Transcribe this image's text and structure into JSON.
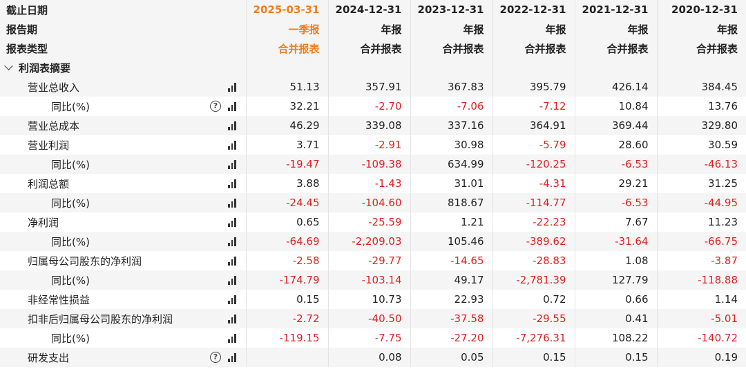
{
  "header_rows": [
    {
      "label": "截止日期",
      "values": [
        "2025-03-31",
        "2024-12-31",
        "2023-12-31",
        "2022-12-31",
        "2021-12-31",
        "2020-12-31"
      ]
    },
    {
      "label": "报告期",
      "values": [
        "一季报",
        "年报",
        "年报",
        "年报",
        "年报",
        "年报"
      ]
    },
    {
      "label": "报表类型",
      "values": [
        "合并报表",
        "合并报表",
        "合并报表",
        "合并报表",
        "合并报表",
        "合并报表"
      ]
    }
  ],
  "highlight_color": "#f07d1e",
  "negative_color": "#e02020",
  "section": {
    "label": "利润表摘要"
  },
  "icons": {
    "chart": "bar-chart-icon",
    "help": "help-circle-icon",
    "collapse": "chevron-down-icon"
  },
  "rows": [
    {
      "label": "营业总收入",
      "level": 1,
      "help": false,
      "values": [
        "51.13",
        "357.91",
        "367.83",
        "395.79",
        "426.14",
        "384.45"
      ]
    },
    {
      "label": "同比(%)",
      "level": 2,
      "help": true,
      "values": [
        "32.21",
        "-2.70",
        "-7.06",
        "-7.12",
        "10.84",
        "13.76"
      ]
    },
    {
      "label": "营业总成本",
      "level": 1,
      "help": false,
      "values": [
        "46.29",
        "339.08",
        "337.16",
        "364.91",
        "369.44",
        "329.80"
      ]
    },
    {
      "label": "营业利润",
      "level": 1,
      "help": false,
      "values": [
        "3.71",
        "-2.91",
        "30.98",
        "-5.79",
        "28.60",
        "30.59"
      ]
    },
    {
      "label": "同比(%)",
      "level": 2,
      "help": false,
      "values": [
        "-19.47",
        "-109.38",
        "634.99",
        "-120.25",
        "-6.53",
        "-46.13"
      ]
    },
    {
      "label": "利润总额",
      "level": 1,
      "help": false,
      "values": [
        "3.88",
        "-1.43",
        "31.01",
        "-4.31",
        "29.21",
        "31.25"
      ]
    },
    {
      "label": "同比(%)",
      "level": 2,
      "help": false,
      "values": [
        "-24.45",
        "-104.60",
        "818.67",
        "-114.77",
        "-6.53",
        "-44.95"
      ]
    },
    {
      "label": "净利润",
      "level": 1,
      "help": false,
      "values": [
        "0.65",
        "-25.59",
        "1.21",
        "-22.23",
        "7.67",
        "11.23"
      ]
    },
    {
      "label": "同比(%)",
      "level": 2,
      "help": false,
      "values": [
        "-64.69",
        "-2,209.03",
        "105.46",
        "-389.62",
        "-31.64",
        "-66.75"
      ]
    },
    {
      "label": "归属母公司股东的净利润",
      "level": 1,
      "help": false,
      "values": [
        "-2.58",
        "-29.77",
        "-14.65",
        "-28.83",
        "1.08",
        "-3.87"
      ]
    },
    {
      "label": "同比(%)",
      "level": 2,
      "help": false,
      "values": [
        "-174.79",
        "-103.14",
        "49.17",
        "-2,781.39",
        "127.79",
        "-118.88"
      ]
    },
    {
      "label": "非经常性损益",
      "level": 1,
      "help": false,
      "values": [
        "0.15",
        "10.73",
        "22.93",
        "0.72",
        "0.66",
        "1.14"
      ]
    },
    {
      "label": "扣非后归属母公司股东的净利润",
      "level": 1,
      "help": false,
      "values": [
        "-2.72",
        "-40.50",
        "-37.58",
        "-29.55",
        "0.41",
        "-5.01"
      ]
    },
    {
      "label": "同比(%)",
      "level": 2,
      "help": false,
      "values": [
        "-119.15",
        "-7.75",
        "-27.20",
        "-7,276.31",
        "108.22",
        "-140.72"
      ]
    },
    {
      "label": "研发支出",
      "level": 1,
      "help": true,
      "values": [
        "",
        "0.08",
        "0.05",
        "0.15",
        "0.15",
        "0.19"
      ]
    }
  ]
}
